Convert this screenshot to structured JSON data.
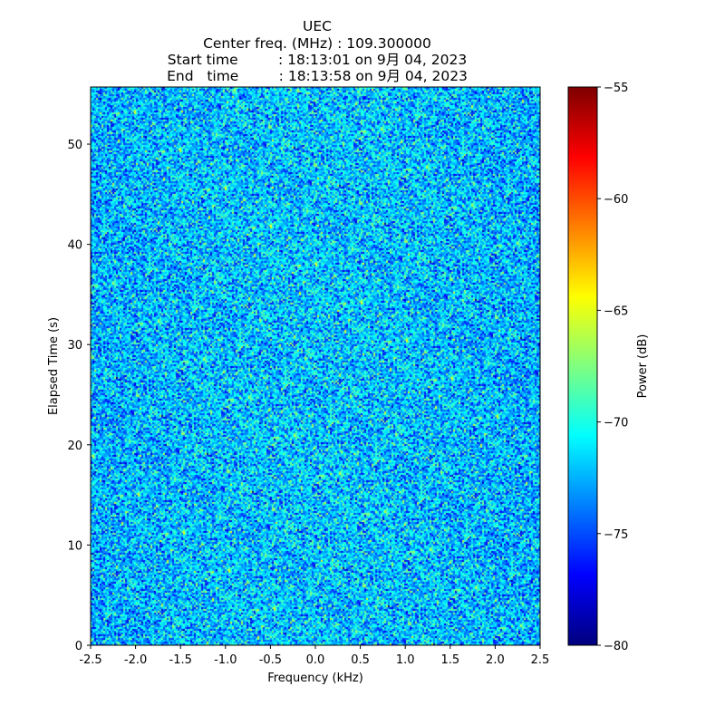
{
  "chart_data": {
    "type": "heatmap",
    "title_lines": [
      "UEC",
      "Center freq. (MHz) : 109.300000",
      "Start time         : 18:13:01 on 9月 04, 2023",
      "End   time         : 18:13:58 on 9月 04, 2023"
    ],
    "xlabel": "Frequency (kHz)",
    "ylabel": "Elapsed Time (s)",
    "xlim": [
      -2.5,
      2.5
    ],
    "ylim": [
      0,
      55.7
    ],
    "xticks": [
      "-2.5",
      "-2.0",
      "-1.5",
      "-1.0",
      "-0.5",
      "0.0",
      "0.5",
      "1.0",
      "1.5",
      "2.0",
      "2.5"
    ],
    "yticks": [
      "0",
      "10",
      "20",
      "30",
      "40",
      "50"
    ],
    "colorbar": {
      "label": "Power (dB)",
      "range": [
        -80,
        -55
      ],
      "ticks": [
        "−80",
        "−75",
        "−70",
        "−65",
        "−60",
        "−55"
      ],
      "colormap": "jet"
    },
    "values_description_free": false,
    "approx_mean_power_db": -72.5,
    "approx_spread_db": 2.5
  }
}
